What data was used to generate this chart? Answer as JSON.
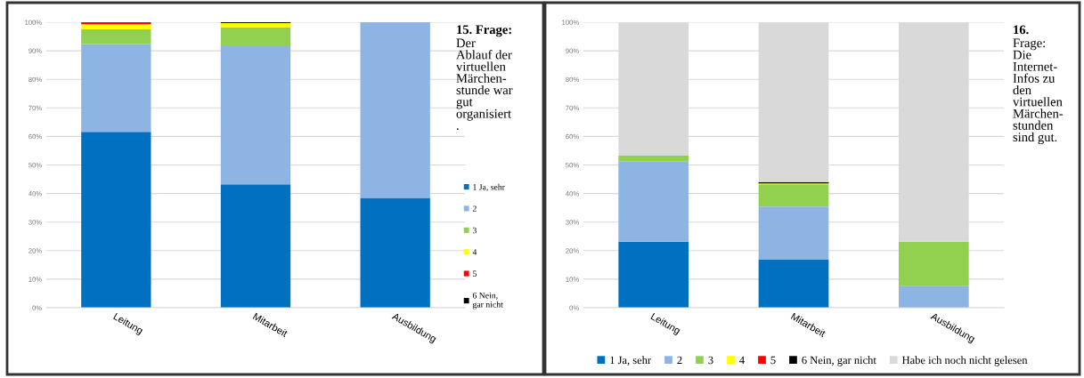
{
  "chart_data": [
    {
      "type": "bar",
      "stacked": true,
      "title": "15. Frage:\nDer\nAblauf der\nvirtuellen\nMärchen-\nstunde war\ngut\norganisiert\n.",
      "categories": [
        "Leitung",
        "Mitarbeit",
        "Ausbildung"
      ],
      "series": [
        {
          "name": "1 Ja, sehr",
          "color": "#0070c0",
          "values": [
            61.6,
            43.2,
            38.5
          ]
        },
        {
          "name": "2",
          "color": "#8eb4e3",
          "values": [
            30.8,
            48.4,
            61.5
          ]
        },
        {
          "name": "3",
          "color": "#92d050",
          "values": [
            5.1,
            6.6,
            0
          ]
        },
        {
          "name": "4",
          "color": "#ffff00",
          "values": [
            1.8,
            1.5,
            0
          ]
        },
        {
          "name": "5",
          "color": "#ff0000",
          "values": [
            0.7,
            0,
            0
          ]
        },
        {
          "name": "6 Nein,\ngar nicht",
          "color": "#000000",
          "values": [
            0,
            0.3,
            0
          ]
        }
      ],
      "ylim": [
        0,
        100
      ],
      "yticks": [
        {
          "value": 0,
          "label": "0%"
        },
        {
          "value": 10,
          "label": "10%"
        },
        {
          "value": 20,
          "label": "20%"
        },
        {
          "value": 30,
          "label": "30%"
        },
        {
          "value": 40,
          "label": "40%"
        },
        {
          "value": 50,
          "label": "50%"
        },
        {
          "value": 60,
          "label": "60%"
        },
        {
          "value": 70,
          "label": "70%"
        },
        {
          "value": 80,
          "label": "80%"
        },
        {
          "value": 90,
          "label": "90%"
        },
        {
          "value": 100,
          "label": "100%"
        }
      ],
      "grid": "y",
      "legend": "right"
    },
    {
      "type": "bar",
      "stacked": true,
      "title": "16.\nFrage:\nDie\nInternet-\nInfos zu\nden\nvirtuellen\nMärchen-\nstunden\nsind gut.",
      "categories": [
        "Leitung",
        "Mitarbeit",
        "Ausbildung"
      ],
      "series": [
        {
          "name": "1 Ja, sehr",
          "color": "#0070c0",
          "values": [
            23.1,
            17.0,
            0
          ]
        },
        {
          "name": "2",
          "color": "#8eb4e3",
          "values": [
            28.2,
            18.4,
            7.7
          ]
        },
        {
          "name": "3",
          "color": "#92d050",
          "values": [
            2.0,
            7.8,
            15.4
          ]
        },
        {
          "name": "4",
          "color": "#ffff00",
          "values": [
            0,
            0.3,
            0
          ]
        },
        {
          "name": "5",
          "color": "#ff0000",
          "values": [
            0,
            0,
            0
          ]
        },
        {
          "name": "6 Nein, gar nicht",
          "color": "#000000",
          "values": [
            0,
            0.5,
            0
          ]
        },
        {
          "name": "Habe ich noch nicht gelesen",
          "color": "#d9d9d9",
          "values": [
            46.7,
            56.0,
            76.9
          ]
        }
      ],
      "ylim": [
        0,
        100
      ],
      "yticks": [
        {
          "value": 0,
          "label": "0%"
        },
        {
          "value": 10,
          "label": "10%"
        },
        {
          "value": 20,
          "label": "20%"
        },
        {
          "value": 30,
          "label": "30%"
        },
        {
          "value": 40,
          "label": "40%"
        },
        {
          "value": 50,
          "label": "50%"
        },
        {
          "value": 60,
          "label": "60%"
        },
        {
          "value": 70,
          "label": "70%"
        },
        {
          "value": 80,
          "label": "80%"
        },
        {
          "value": 90,
          "label": "90%"
        },
        {
          "value": 100,
          "label": "100%"
        }
      ],
      "grid": "y",
      "legend": "bottom"
    }
  ]
}
